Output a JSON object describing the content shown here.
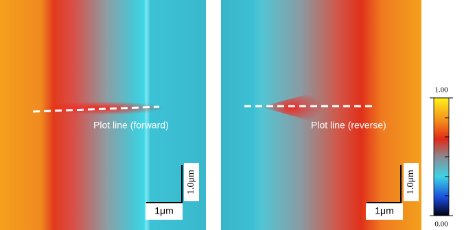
{
  "panels": [
    {
      "plot_line_label": "Plot line (forward)",
      "scale_x": "1μm",
      "scale_y": "1.0μm"
    },
    {
      "plot_line_label": "Plot line (reverse)",
      "scale_x": "1μm",
      "scale_y": "1.0μm"
    }
  ],
  "colorbar": {
    "ticks": [
      {
        "value": 0,
        "label": "0.00"
      },
      {
        "value": 1,
        "label": "1.00"
      }
    ]
  }
}
